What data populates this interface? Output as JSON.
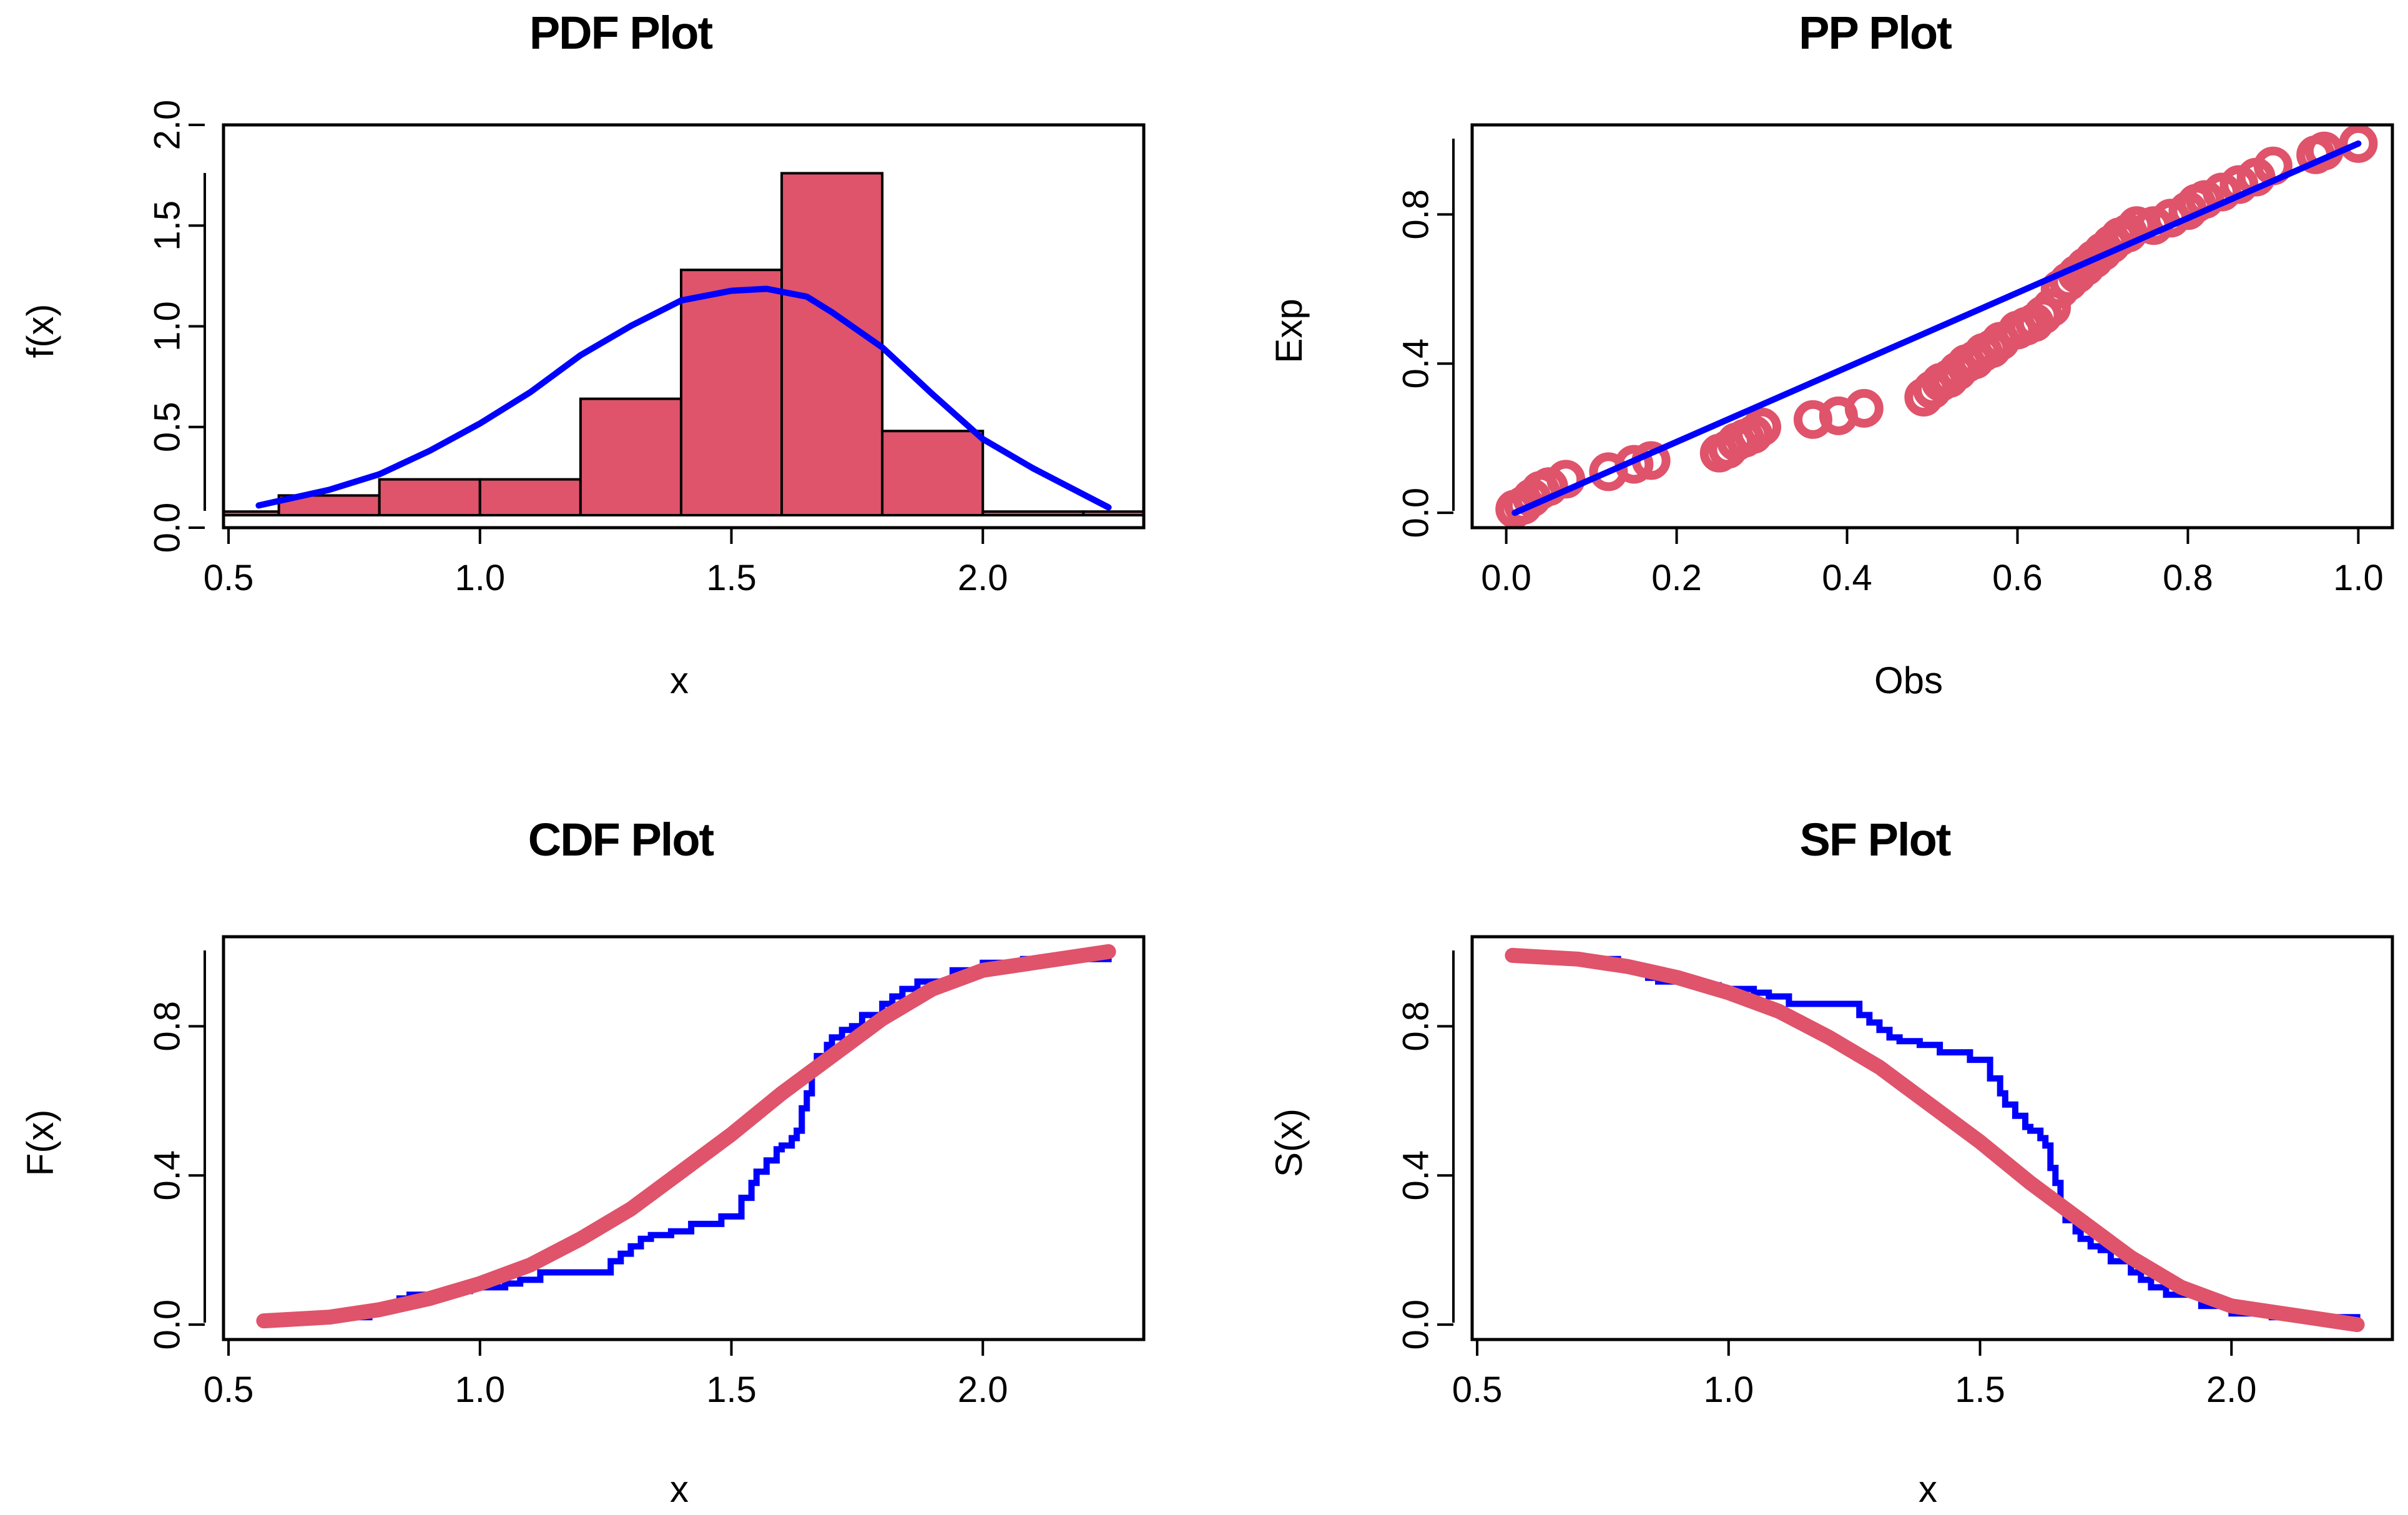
{
  "colors": {
    "bar_fill": "#DF536B",
    "curve_blue": "#0000FF",
    "fit_red": "#DF536B"
  },
  "chart_data": [
    {
      "id": "pdf",
      "type": "bar",
      "title": "PDF Plot",
      "xlabel": "x",
      "ylabel": "f(x)",
      "xlim": [
        0.49,
        2.32
      ],
      "ylim": [
        0,
        2.0
      ],
      "xticks": [
        "0.5",
        "1.0",
        "1.5",
        "2.0"
      ],
      "yticks": [
        "0.0",
        "0.5",
        "1.0",
        "1.5",
        "2.0"
      ],
      "histogram": {
        "name": "density histogram",
        "bins": [
          [
            0.4,
            0.6,
            0.08
          ],
          [
            0.6,
            0.8,
            0.16
          ],
          [
            0.8,
            1.0,
            0.24
          ],
          [
            1.0,
            1.2,
            0.24
          ],
          [
            1.2,
            1.4,
            0.64
          ],
          [
            1.4,
            1.6,
            1.28
          ],
          [
            1.6,
            1.8,
            1.76
          ],
          [
            1.8,
            2.0,
            0.48
          ],
          [
            2.0,
            2.2,
            0.08
          ],
          [
            2.2,
            2.4,
            0.08
          ]
        ]
      },
      "series": [
        {
          "name": "fitted density",
          "x": [
            0.56,
            0.7,
            0.8,
            0.9,
            1.0,
            1.1,
            1.2,
            1.3,
            1.4,
            1.5,
            1.57,
            1.65,
            1.7,
            1.8,
            1.9,
            2.0,
            2.1,
            2.25
          ],
          "y": [
            0.05,
            0.13,
            0.21,
            0.33,
            0.47,
            0.63,
            0.82,
            0.97,
            1.1,
            1.15,
            1.16,
            1.12,
            1.04,
            0.86,
            0.62,
            0.39,
            0.24,
            0.04
          ]
        }
      ]
    },
    {
      "id": "pp",
      "type": "scatter",
      "title": "PP Plot",
      "xlabel": "Obs",
      "ylabel": "Exp",
      "xlim": [
        -0.04,
        1.04
      ],
      "ylim": [
        -0.04,
        1.04
      ],
      "xticks": [
        "0.0",
        "0.2",
        "0.4",
        "0.6",
        "0.8",
        "1.0"
      ],
      "yticks": [
        "0.0",
        "0.4",
        "0.8"
      ],
      "series": [
        {
          "name": "observed vs expected",
          "x": [
            0.01,
            0.02,
            0.03,
            0.04,
            0.05,
            0.07,
            0.12,
            0.15,
            0.17,
            0.25,
            0.26,
            0.27,
            0.28,
            0.29,
            0.3,
            0.36,
            0.39,
            0.42,
            0.49,
            0.5,
            0.51,
            0.52,
            0.53,
            0.54,
            0.55,
            0.56,
            0.57,
            0.58,
            0.6,
            0.61,
            0.62,
            0.63,
            0.64,
            0.65,
            0.66,
            0.67,
            0.68,
            0.69,
            0.7,
            0.71,
            0.72,
            0.73,
            0.74,
            0.76,
            0.78,
            0.8,
            0.81,
            0.82,
            0.84,
            0.86,
            0.88,
            0.9,
            0.95,
            0.96,
            1.0
          ],
          "y": [
            0.01,
            0.02,
            0.04,
            0.06,
            0.07,
            0.09,
            0.11,
            0.13,
            0.14,
            0.16,
            0.17,
            0.19,
            0.2,
            0.21,
            0.23,
            0.25,
            0.26,
            0.28,
            0.31,
            0.33,
            0.35,
            0.36,
            0.38,
            0.4,
            0.41,
            0.43,
            0.44,
            0.46,
            0.49,
            0.5,
            0.51,
            0.53,
            0.55,
            0.6,
            0.62,
            0.64,
            0.66,
            0.68,
            0.7,
            0.72,
            0.74,
            0.75,
            0.77,
            0.77,
            0.79,
            0.81,
            0.83,
            0.84,
            0.86,
            0.88,
            0.9,
            0.93,
            0.96,
            0.97,
            0.99
          ]
        },
        {
          "name": "reference line",
          "x": [
            0.01,
            1.0
          ],
          "y": [
            0.0,
            0.99
          ]
        }
      ]
    },
    {
      "id": "cdf",
      "type": "line",
      "title": "CDF Plot",
      "xlabel": "x",
      "ylabel": "F(x)",
      "xlim": [
        0.49,
        2.32
      ],
      "ylim": [
        -0.04,
        1.04
      ],
      "xticks": [
        "0.5",
        "1.0",
        "1.5",
        "2.0"
      ],
      "yticks": [
        "0.0",
        "0.4",
        "0.8"
      ],
      "series": [
        {
          "name": "empirical CDF",
          "x": [
            0.56,
            0.7,
            0.78,
            0.81,
            0.84,
            0.86,
            0.92,
            0.95,
            0.98,
            1.02,
            1.05,
            1.08,
            1.12,
            1.15,
            1.22,
            1.26,
            1.28,
            1.3,
            1.32,
            1.34,
            1.38,
            1.42,
            1.48,
            1.52,
            1.54,
            1.55,
            1.57,
            1.59,
            1.6,
            1.62,
            1.63,
            1.64,
            1.65,
            1.66,
            1.67,
            1.69,
            1.7,
            1.72,
            1.74,
            1.76,
            1.8,
            1.82,
            1.84,
            1.87,
            1.94,
            2.0,
            2.08,
            2.25
          ],
          "y": [
            0.01,
            0.02,
            0.04,
            0.05,
            0.07,
            0.08,
            0.08,
            0.09,
            0.1,
            0.1,
            0.11,
            0.12,
            0.14,
            0.14,
            0.14,
            0.17,
            0.19,
            0.21,
            0.23,
            0.24,
            0.25,
            0.27,
            0.29,
            0.34,
            0.38,
            0.41,
            0.44,
            0.47,
            0.48,
            0.5,
            0.52,
            0.58,
            0.62,
            0.68,
            0.72,
            0.75,
            0.77,
            0.79,
            0.8,
            0.83,
            0.86,
            0.88,
            0.9,
            0.92,
            0.95,
            0.97,
            0.98,
            1.0
          ]
        },
        {
          "name": "fitted CDF",
          "x": [
            0.57,
            0.7,
            0.8,
            0.9,
            1.0,
            1.1,
            1.2,
            1.3,
            1.4,
            1.5,
            1.6,
            1.7,
            1.8,
            1.9,
            2.0,
            2.1,
            2.25
          ],
          "y": [
            0.01,
            0.02,
            0.04,
            0.07,
            0.11,
            0.16,
            0.23,
            0.31,
            0.41,
            0.51,
            0.62,
            0.72,
            0.82,
            0.9,
            0.95,
            0.97,
            1.0
          ]
        }
      ]
    },
    {
      "id": "sf",
      "type": "line",
      "title": "SF Plot",
      "xlabel": "x",
      "ylabel": "S(x)",
      "xlim": [
        0.49,
        2.32
      ],
      "ylim": [
        -0.04,
        1.04
      ],
      "xticks": [
        "0.5",
        "1.0",
        "1.5",
        "2.0"
      ],
      "yticks": [
        "0.0",
        "0.4",
        "0.8"
      ],
      "series": [
        {
          "name": "empirical SF",
          "x": [
            0.56,
            0.7,
            0.78,
            0.81,
            0.84,
            0.86,
            0.92,
            0.95,
            0.98,
            1.02,
            1.05,
            1.08,
            1.12,
            1.15,
            1.22,
            1.26,
            1.28,
            1.3,
            1.32,
            1.34,
            1.38,
            1.42,
            1.48,
            1.52,
            1.54,
            1.55,
            1.57,
            1.59,
            1.6,
            1.62,
            1.63,
            1.64,
            1.65,
            1.66,
            1.67,
            1.69,
            1.7,
            1.72,
            1.74,
            1.76,
            1.8,
            1.82,
            1.84,
            1.87,
            1.94,
            2.0,
            2.08,
            2.25
          ],
          "y": [
            0.99,
            0.98,
            0.96,
            0.95,
            0.93,
            0.92,
            0.92,
            0.91,
            0.9,
            0.9,
            0.89,
            0.88,
            0.86,
            0.86,
            0.86,
            0.83,
            0.81,
            0.79,
            0.77,
            0.76,
            0.75,
            0.73,
            0.71,
            0.66,
            0.62,
            0.59,
            0.56,
            0.53,
            0.52,
            0.5,
            0.48,
            0.42,
            0.38,
            0.32,
            0.28,
            0.25,
            0.23,
            0.21,
            0.2,
            0.17,
            0.14,
            0.12,
            0.1,
            0.08,
            0.05,
            0.03,
            0.02,
            0.0
          ]
        },
        {
          "name": "fitted SF",
          "x": [
            0.57,
            0.7,
            0.8,
            0.9,
            1.0,
            1.1,
            1.2,
            1.3,
            1.4,
            1.5,
            1.6,
            1.7,
            1.8,
            1.9,
            2.0,
            2.1,
            2.25
          ],
          "y": [
            0.99,
            0.98,
            0.96,
            0.93,
            0.89,
            0.84,
            0.77,
            0.69,
            0.59,
            0.49,
            0.38,
            0.28,
            0.18,
            0.1,
            0.05,
            0.03,
            0.0
          ]
        }
      ]
    }
  ]
}
